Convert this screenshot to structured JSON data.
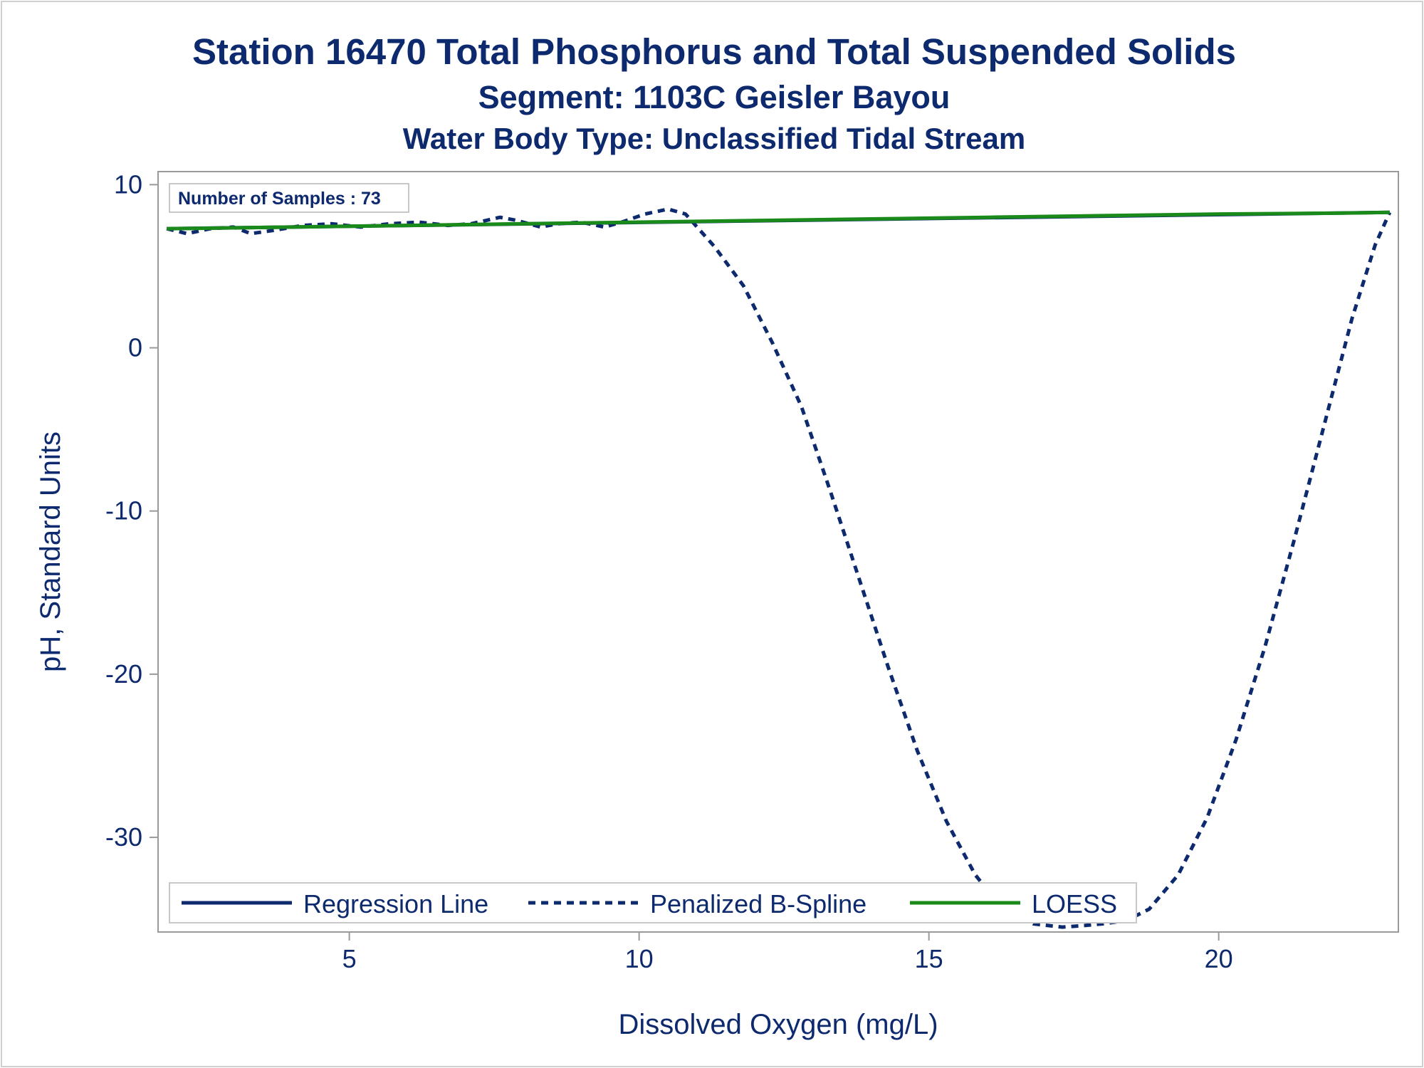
{
  "chart_data": {
    "type": "line",
    "title": "Station 16470  Total Phosphorus and Total Suspended Solids",
    "subtitle": "Segment: 1103C  Geisler Bayou",
    "subtitle2": "Water Body Type: Unclassified Tidal Stream",
    "xlabel": "Dissolved Oxygen (mg/L)",
    "ylabel": "pH, Standard Units",
    "xlim": [
      1.7,
      23.1
    ],
    "ylim": [
      -35.8,
      10.8
    ],
    "x_ticks": [
      5,
      10,
      15,
      20
    ],
    "y_ticks": [
      10,
      0,
      -10,
      -20,
      -30
    ],
    "grid": false,
    "annotation": "Number of Samples : 73",
    "legend_position": "bottom-inside",
    "series": [
      {
        "name": "Regression Line",
        "style": "solid",
        "color": "#0e2a6e",
        "x": [
          1.85,
          22.95
        ],
        "y": [
          7.3,
          8.3
        ]
      },
      {
        "name": "Penalized B-Spline",
        "style": "dashed",
        "color": "#0e2a6e",
        "x": [
          1.85,
          2.2,
          2.6,
          3.0,
          3.3,
          3.7,
          4.2,
          4.7,
          5.2,
          5.7,
          6.2,
          6.7,
          7.1,
          7.6,
          7.9,
          8.3,
          8.6,
          9.0,
          9.4,
          9.7,
          10.1,
          10.5,
          10.8,
          11.3,
          11.8,
          12.3,
          12.8,
          13.3,
          13.8,
          14.3,
          14.8,
          15.3,
          15.8,
          16.3,
          16.8,
          17.3,
          17.7,
          18.0,
          18.4,
          18.8,
          19.3,
          19.8,
          20.3,
          20.8,
          21.3,
          21.8,
          22.3,
          22.7,
          22.95
        ],
        "y": [
          7.3,
          7.0,
          7.3,
          7.4,
          7.0,
          7.2,
          7.5,
          7.6,
          7.4,
          7.6,
          7.7,
          7.5,
          7.6,
          8.0,
          7.8,
          7.4,
          7.6,
          7.7,
          7.4,
          7.7,
          8.2,
          8.5,
          8.2,
          6.2,
          3.8,
          0.3,
          -3.6,
          -8.8,
          -14.2,
          -19.6,
          -24.7,
          -29.0,
          -32.3,
          -34.5,
          -35.3,
          -35.5,
          -35.4,
          -35.3,
          -35.1,
          -34.4,
          -32.3,
          -28.8,
          -24.0,
          -18.3,
          -11.8,
          -5.0,
          1.8,
          6.3,
          8.3
        ]
      },
      {
        "name": "LOESS",
        "style": "solid",
        "color": "#1a8a1a",
        "x": [
          1.85,
          4.0,
          6.0,
          8.0,
          10.0,
          12.0,
          14.0,
          16.0,
          18.0,
          20.0,
          22.0,
          22.95
        ],
        "y": [
          7.3,
          7.4,
          7.5,
          7.6,
          7.7,
          7.8,
          7.9,
          8.0,
          8.1,
          8.2,
          8.25,
          8.3
        ]
      }
    ]
  }
}
